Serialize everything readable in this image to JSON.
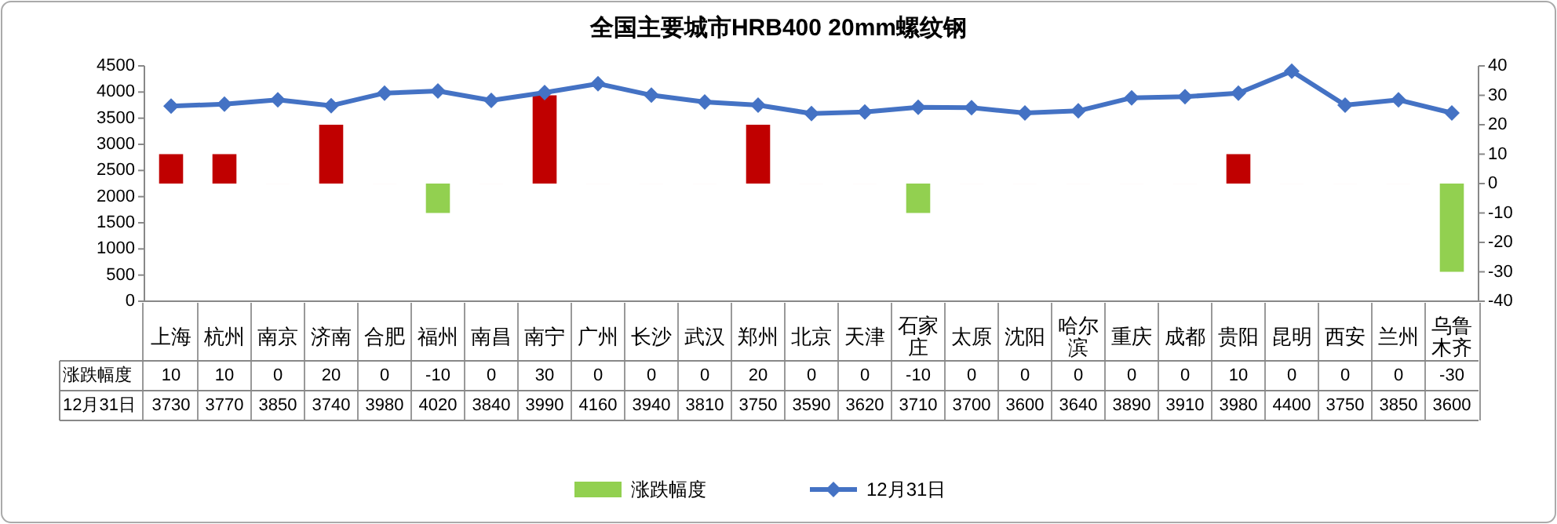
{
  "chart_data": {
    "type": "bar",
    "title": "全国主要城市HRB400 20mm螺纹钢",
    "categories": [
      "上海",
      "杭州",
      "南京",
      "济南",
      "合肥",
      "福州",
      "南昌",
      "南宁",
      "广州",
      "长沙",
      "武汉",
      "郑州",
      "北京",
      "天津",
      "石家庄",
      "太原",
      "沈阳",
      "哈尔滨",
      "重庆",
      "成都",
      "贵阳",
      "昆明",
      "西安",
      "兰州",
      "乌鲁木齐"
    ],
    "series": [
      {
        "name": "涨跌幅度",
        "axis": "y2",
        "color": "#92d050",
        "colors": [
          "#c00000",
          "#c00000",
          "#c00000",
          "#c00000",
          "#c00000",
          "#92d050",
          "#c00000",
          "#c00000",
          "#c00000",
          "#c00000",
          "#c00000",
          "#c00000",
          "#c00000",
          "#c00000",
          "#92d050",
          "#c00000",
          "#c00000",
          "#c00000",
          "#c00000",
          "#c00000",
          "#c00000",
          "#c00000",
          "#c00000",
          "#c00000",
          "#92d050"
        ],
        "values": [
          10,
          10,
          0,
          20,
          0,
          -10,
          0,
          30,
          0,
          0,
          0,
          20,
          0,
          0,
          -10,
          0,
          0,
          0,
          0,
          0,
          10,
          0,
          0,
          0,
          -30
        ]
      },
      {
        "name": "12月31日",
        "type": "line",
        "color": "#4472c4",
        "marker": "diamond",
        "values": [
          3730,
          3770,
          3850,
          3740,
          3980,
          4020,
          3840,
          3990,
          4160,
          3940,
          3810,
          3750,
          3590,
          3620,
          3710,
          3700,
          3600,
          3640,
          3890,
          3910,
          3980,
          4400,
          3750,
          3850,
          3600
        ]
      }
    ],
    "ylim": [
      0,
      4500
    ],
    "yticks": [
      0,
      500,
      1000,
      1500,
      2000,
      2500,
      3000,
      3500,
      4000,
      4500
    ],
    "y2lim": [
      -40,
      40
    ],
    "y2ticks": [
      -40,
      -30,
      -20,
      -10,
      0,
      10,
      20,
      30,
      40
    ],
    "data_labels": true,
    "legend": "bottom"
  }
}
